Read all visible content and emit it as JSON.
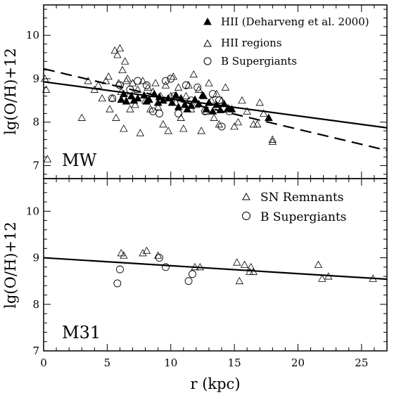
{
  "chart_data": [
    {
      "type": "scatter",
      "panel_label": "MW",
      "ylabel": "lg(O/H)+12",
      "xlim": [
        0,
        27
      ],
      "ylim": [
        6.7,
        10.7
      ],
      "x_ticks": [
        "0",
        "5",
        "10",
        "15",
        "20",
        "25"
      ],
      "y_ticks": [
        "7",
        "8",
        "9",
        "10"
      ],
      "legend_position": "top-right",
      "series": [
        {
          "name": "HII (Deharveng et al. 2000)",
          "marker": "filled-triangle",
          "points": [
            [
              6.1,
              8.52
            ],
            [
              6.3,
              8.65
            ],
            [
              6.5,
              8.48
            ],
            [
              6.9,
              8.6
            ],
            [
              7.1,
              8.5
            ],
            [
              7.4,
              8.55
            ],
            [
              7.9,
              8.62
            ],
            [
              8.1,
              8.48
            ],
            [
              8.3,
              8.52
            ],
            [
              8.7,
              8.65
            ],
            [
              9.0,
              8.45
            ],
            [
              9.1,
              8.58
            ],
            [
              9.4,
              8.5
            ],
            [
              9.8,
              8.55
            ],
            [
              10.1,
              8.45
            ],
            [
              10.4,
              8.62
            ],
            [
              10.6,
              8.35
            ],
            [
              10.8,
              8.55
            ],
            [
              11.1,
              8.4
            ],
            [
              11.3,
              8.3
            ],
            [
              11.6,
              8.38
            ],
            [
              11.9,
              8.52
            ],
            [
              12.2,
              8.42
            ],
            [
              12.5,
              8.62
            ],
            [
              12.8,
              8.3
            ],
            [
              13.0,
              8.45
            ],
            [
              13.3,
              8.25
            ],
            [
              13.6,
              8.4
            ],
            [
              13.9,
              8.28
            ],
            [
              14.2,
              8.42
            ],
            [
              14.5,
              8.32
            ],
            [
              14.8,
              8.3
            ],
            [
              17.7,
              8.1
            ]
          ]
        },
        {
          "name": "HII regions",
          "marker": "open-triangle",
          "points": [
            [
              0.1,
              9.0
            ],
            [
              0.2,
              8.75
            ],
            [
              0.3,
              7.15
            ],
            [
              3.0,
              8.1
            ],
            [
              3.5,
              8.95
            ],
            [
              4.0,
              8.75
            ],
            [
              4.3,
              8.85
            ],
            [
              4.6,
              8.55
            ],
            [
              4.9,
              8.95
            ],
            [
              5.1,
              9.05
            ],
            [
              5.2,
              8.3
            ],
            [
              5.4,
              8.55
            ],
            [
              5.6,
              9.65
            ],
            [
              5.7,
              8.1
            ],
            [
              5.8,
              9.55
            ],
            [
              5.9,
              8.9
            ],
            [
              6.0,
              9.7
            ],
            [
              6.1,
              8.7
            ],
            [
              6.2,
              9.2
            ],
            [
              6.3,
              7.85
            ],
            [
              6.4,
              9.4
            ],
            [
              6.5,
              8.95
            ],
            [
              6.6,
              9.0
            ],
            [
              6.7,
              8.6
            ],
            [
              6.8,
              8.3
            ],
            [
              7.0,
              8.9
            ],
            [
              7.2,
              8.4
            ],
            [
              7.4,
              8.75
            ],
            [
              7.6,
              7.75
            ],
            [
              7.8,
              8.95
            ],
            [
              8.0,
              8.5
            ],
            [
              8.2,
              8.8
            ],
            [
              8.4,
              8.3
            ],
            [
              8.6,
              8.7
            ],
            [
              8.8,
              8.9
            ],
            [
              9.0,
              8.35
            ],
            [
              9.2,
              8.6
            ],
            [
              9.4,
              7.95
            ],
            [
              9.6,
              8.85
            ],
            [
              9.8,
              7.8
            ],
            [
              10.0,
              8.6
            ],
            [
              10.2,
              9.05
            ],
            [
              10.4,
              8.45
            ],
            [
              10.6,
              8.8
            ],
            [
              10.8,
              8.1
            ],
            [
              11.0,
              7.85
            ],
            [
              11.2,
              8.6
            ],
            [
              11.4,
              8.85
            ],
            [
              11.6,
              8.3
            ],
            [
              11.8,
              9.1
            ],
            [
              12.0,
              8.4
            ],
            [
              12.2,
              8.75
            ],
            [
              12.4,
              7.8
            ],
            [
              12.6,
              8.6
            ],
            [
              12.8,
              8.25
            ],
            [
              13.0,
              8.9
            ],
            [
              13.2,
              8.5
            ],
            [
              13.4,
              8.1
            ],
            [
              13.6,
              8.65
            ],
            [
              13.8,
              7.95
            ],
            [
              14.0,
              8.5
            ],
            [
              14.3,
              8.8
            ],
            [
              14.6,
              8.3
            ],
            [
              15.0,
              7.9
            ],
            [
              15.3,
              8.0
            ],
            [
              15.6,
              8.5
            ],
            [
              16.0,
              8.25
            ],
            [
              16.5,
              7.95
            ],
            [
              16.8,
              7.95
            ],
            [
              17.0,
              8.45
            ],
            [
              17.3,
              8.2
            ],
            [
              18.0,
              7.6
            ],
            [
              18.0,
              7.55
            ]
          ]
        },
        {
          "name": "B Supergiants",
          "marker": "open-circle",
          "points": [
            [
              5.4,
              8.55
            ],
            [
              6.0,
              8.85
            ],
            [
              6.8,
              8.75
            ],
            [
              7.4,
              8.95
            ],
            [
              8.1,
              8.85
            ],
            [
              8.6,
              8.25
            ],
            [
              9.1,
              8.2
            ],
            [
              9.6,
              8.95
            ],
            [
              10.0,
              9.0
            ],
            [
              10.3,
              8.6
            ],
            [
              10.6,
              8.2
            ],
            [
              11.2,
              8.85
            ],
            [
              11.6,
              8.5
            ],
            [
              12.1,
              8.8
            ],
            [
              12.7,
              8.25
            ],
            [
              13.3,
              8.65
            ],
            [
              13.8,
              8.5
            ],
            [
              14.0,
              7.9
            ],
            [
              14.6,
              8.25
            ]
          ]
        }
      ],
      "lines": [
        {
          "style": "solid",
          "x": [
            0,
            27
          ],
          "y": [
            8.93,
            7.87
          ]
        },
        {
          "style": "dashed",
          "x": [
            0,
            27
          ],
          "y": [
            9.23,
            7.35
          ]
        }
      ]
    },
    {
      "type": "scatter",
      "panel_label": "M31",
      "xlabel": "r (kpc)",
      "ylabel": "lg(O/H)+12",
      "xlim": [
        0,
        27
      ],
      "ylim": [
        7.0,
        10.7
      ],
      "x_ticks": [
        "0",
        "5",
        "10",
        "15",
        "20",
        "25"
      ],
      "y_ticks": [
        "7",
        "8",
        "9",
        "10"
      ],
      "legend_position": "top-right",
      "series": [
        {
          "name": "SN Remnants",
          "marker": "open-triangle",
          "points": [
            [
              6.1,
              9.1
            ],
            [
              6.3,
              9.05
            ],
            [
              7.8,
              9.1
            ],
            [
              8.1,
              9.15
            ],
            [
              9.0,
              9.05
            ],
            [
              11.9,
              8.8
            ],
            [
              12.3,
              8.8
            ],
            [
              15.2,
              8.9
            ],
            [
              15.4,
              8.5
            ],
            [
              15.8,
              8.85
            ],
            [
              16.2,
              8.7
            ],
            [
              16.3,
              8.8
            ],
            [
              16.5,
              8.7
            ],
            [
              21.6,
              8.85
            ],
            [
              21.9,
              8.55
            ],
            [
              22.4,
              8.6
            ],
            [
              25.9,
              8.55
            ]
          ]
        },
        {
          "name": "B Supergiants",
          "marker": "open-circle",
          "points": [
            [
              5.8,
              8.45
            ],
            [
              6.0,
              8.75
            ],
            [
              9.1,
              9.0
            ],
            [
              9.6,
              8.8
            ],
            [
              11.4,
              8.5
            ],
            [
              11.7,
              8.65
            ]
          ]
        }
      ],
      "lines": [
        {
          "style": "solid",
          "x": [
            0,
            27
          ],
          "y": [
            9.0,
            8.54
          ]
        }
      ]
    }
  ]
}
